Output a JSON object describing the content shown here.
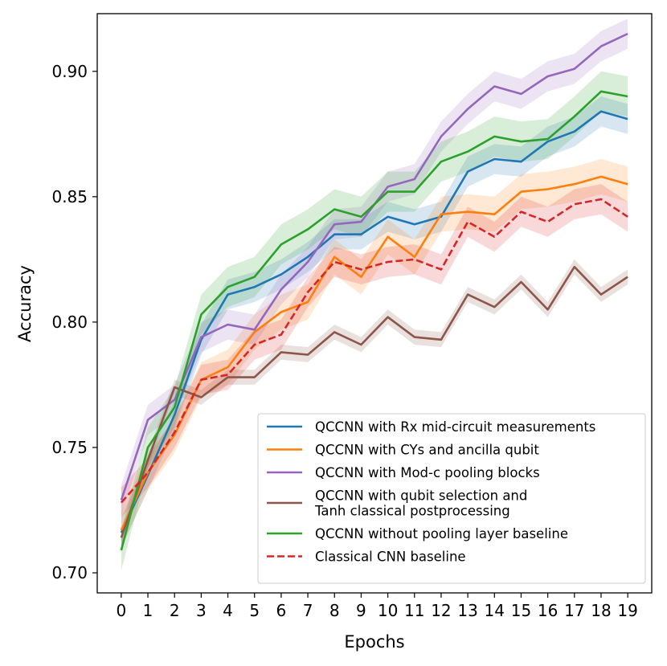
{
  "chart_data": {
    "type": "line",
    "xlabel": "Epochs",
    "ylabel": "Accuracy",
    "x": [
      0,
      1,
      2,
      3,
      4,
      5,
      6,
      7,
      8,
      9,
      10,
      11,
      12,
      13,
      14,
      15,
      16,
      17,
      18,
      19
    ],
    "x_tick_labels": [
      "0",
      "1",
      "2",
      "3",
      "4",
      "5",
      "6",
      "7",
      "8",
      "9",
      "10",
      "11",
      "12",
      "13",
      "14",
      "15",
      "16",
      "17",
      "18",
      "19"
    ],
    "yticks": [
      0.7,
      0.75,
      0.8,
      0.85,
      0.9
    ],
    "y_tick_labels": [
      "0.70",
      "0.75",
      "0.80",
      "0.85",
      "0.90"
    ],
    "xlim": [
      -0.9,
      19.9
    ],
    "ylim": [
      0.692,
      0.923
    ],
    "grid": false,
    "legend_position": "lower-right",
    "series": [
      {
        "name": "QCCNN with Rx mid-circuit measurements",
        "legend_lines": [
          "QCCNN with Rx mid-circuit measurements"
        ],
        "color": "#1f77b4",
        "dashed": false,
        "values": [
          0.716,
          0.739,
          0.763,
          0.793,
          0.811,
          0.814,
          0.819,
          0.826,
          0.835,
          0.835,
          0.842,
          0.839,
          0.842,
          0.86,
          0.865,
          0.864,
          0.872,
          0.876,
          0.884,
          0.881
        ],
        "band": 0.006
      },
      {
        "name": "QCCNN with CYs and ancilla qubit",
        "legend_lines": [
          "QCCNN with CYs and ancilla qubit"
        ],
        "color": "#ff7f0e",
        "dashed": false,
        "values": [
          0.717,
          0.74,
          0.755,
          0.777,
          0.782,
          0.796,
          0.804,
          0.808,
          0.826,
          0.818,
          0.834,
          0.826,
          0.843,
          0.844,
          0.843,
          0.852,
          0.853,
          0.855,
          0.858,
          0.855
        ],
        "band": 0.007
      },
      {
        "name": "QCCNN with Mod-c pooling blocks",
        "legend_lines": [
          "QCCNN with Mod-c pooling blocks"
        ],
        "color": "#9467bd",
        "dashed": false,
        "values": [
          0.729,
          0.761,
          0.769,
          0.794,
          0.799,
          0.797,
          0.813,
          0.824,
          0.839,
          0.84,
          0.854,
          0.857,
          0.874,
          0.885,
          0.894,
          0.891,
          0.898,
          0.901,
          0.91,
          0.915
        ],
        "band": 0.006
      },
      {
        "name": "QCCNN with qubit selection and Tanh classical postprocessing",
        "legend_lines": [
          "QCCNN with qubit selection and",
          "Tanh classical postprocessing"
        ],
        "color": "#8c564b",
        "dashed": false,
        "values": [
          0.714,
          0.745,
          0.774,
          0.77,
          0.778,
          0.778,
          0.788,
          0.787,
          0.796,
          0.791,
          0.802,
          0.794,
          0.793,
          0.811,
          0.806,
          0.816,
          0.805,
          0.822,
          0.811,
          0.818
        ],
        "band": 0.003
      },
      {
        "name": "QCCNN without pooling layer baseline",
        "legend_lines": [
          "QCCNN without pooling layer baseline"
        ],
        "color": "#2ca02c",
        "dashed": false,
        "values": [
          0.709,
          0.75,
          0.766,
          0.803,
          0.814,
          0.818,
          0.831,
          0.837,
          0.845,
          0.842,
          0.852,
          0.852,
          0.864,
          0.868,
          0.874,
          0.872,
          0.873,
          0.882,
          0.892,
          0.89
        ],
        "band": 0.008
      },
      {
        "name": "Classical CNN baseline",
        "legend_lines": [
          "Classical CNN baseline"
        ],
        "color": "#d62728",
        "dashed": true,
        "values": [
          0.728,
          0.74,
          0.756,
          0.777,
          0.779,
          0.791,
          0.795,
          0.812,
          0.824,
          0.821,
          0.824,
          0.825,
          0.821,
          0.84,
          0.834,
          0.844,
          0.84,
          0.847,
          0.849,
          0.842
        ],
        "band": 0.006
      }
    ]
  }
}
